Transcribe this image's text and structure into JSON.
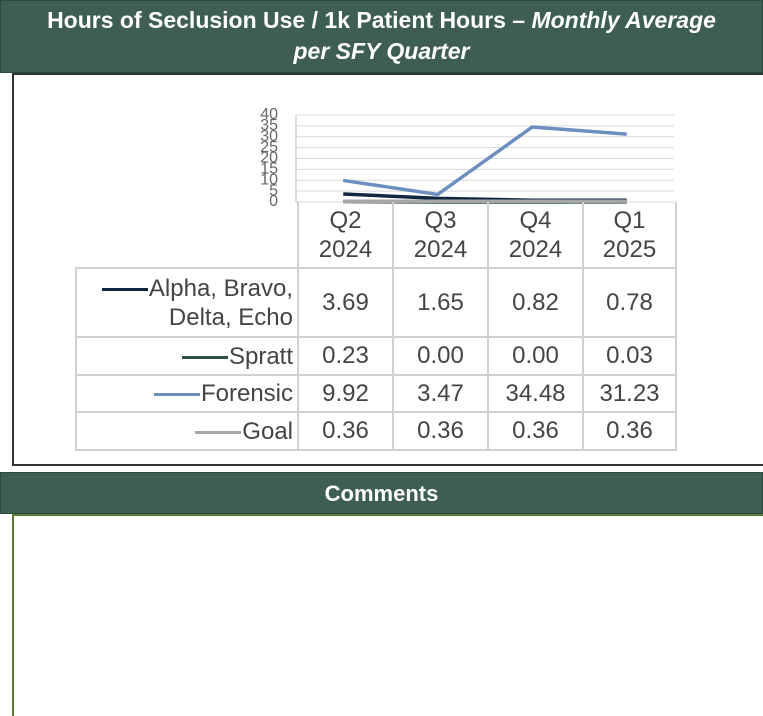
{
  "header": {
    "title": "Hours of Seclusion Use / 1k Patient Hours –",
    "title_italic": "Monthly Average per SFY Quarter"
  },
  "chart_data": {
    "type": "line",
    "categories": [
      "Q2 2024",
      "Q3 2024",
      "Q4 2024",
      "Q1 2025"
    ],
    "series": [
      {
        "name": "Alpha, Bravo, Delta, Echo",
        "color": "#10283f",
        "values": [
          3.69,
          1.65,
          0.82,
          0.78
        ]
      },
      {
        "name": "Spratt",
        "color": "#2f4f46",
        "values": [
          0.23,
          0,
          0,
          0.03
        ],
        "value_labels": [
          "0.23",
          "0.00",
          "0.00",
          "0.03"
        ]
      },
      {
        "name": "Forensic",
        "color": "#6b8fbf",
        "values": [
          9.92,
          3.47,
          34.48,
          31.23
        ]
      },
      {
        "name": "Goal",
        "color": "#a6a6a6",
        "values": [
          0.36,
          0.36,
          0.36,
          0.36
        ]
      }
    ],
    "ylim": [
      0,
      40
    ],
    "yticks": [
      0,
      5,
      10,
      15,
      20,
      25,
      30,
      35,
      40
    ],
    "grid": true
  },
  "comments": {
    "title": "Comments"
  }
}
